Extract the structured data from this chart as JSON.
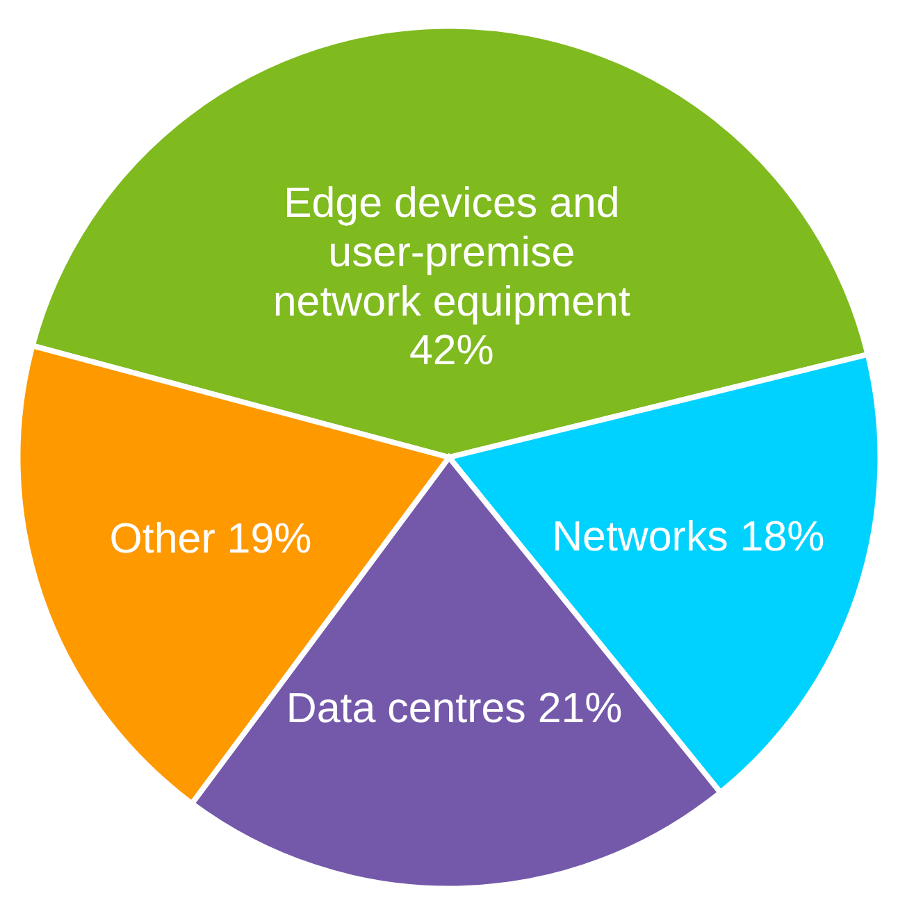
{
  "chart_data": {
    "type": "pie",
    "categories": [
      "Edge devices and user-premise network equipment",
      "Networks",
      "Data centres",
      "Other"
    ],
    "values": [
      42,
      18,
      21,
      19
    ],
    "value_labels": [
      "42%",
      "18%",
      "21%",
      "19%"
    ],
    "colors": [
      "#7fba1f",
      "#00d2ff",
      "#7459ab",
      "#ff9900"
    ],
    "legend": false
  }
}
